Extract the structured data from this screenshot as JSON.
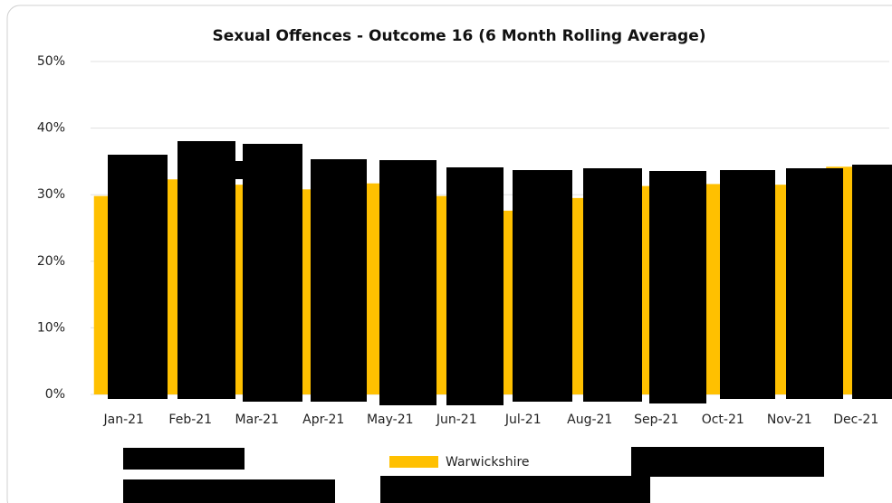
{
  "chart_data": {
    "type": "bar",
    "title": "Sexual Offences - Outcome 16  (6 Month Rolling Average)",
    "categories": [
      "Jan-21",
      "Feb-21",
      "Mar-21",
      "Apr-21",
      "May-21",
      "Jun-21",
      "Jul-21",
      "Aug-21",
      "Sep-21",
      "Oct-21",
      "Nov-21",
      "Dec-21"
    ],
    "series": [
      {
        "name": "Warwickshire",
        "color": "#ffc000",
        "values": [
          29.8,
          32.3,
          31.5,
          30.8,
          31.7,
          29.8,
          27.6,
          29.5,
          31.3,
          31.6,
          31.5,
          34.2
        ]
      }
    ],
    "ylim": [
      0,
      50
    ],
    "yticks": [
      {
        "value": 0,
        "label": "0%"
      },
      {
        "value": 10,
        "label": "10%"
      },
      {
        "value": 20,
        "label": "20%"
      },
      {
        "value": 30,
        "label": "30%"
      },
      {
        "value": 40,
        "label": "40%"
      },
      {
        "value": 50,
        "label": "50%"
      }
    ],
    "grid": true
  }
}
